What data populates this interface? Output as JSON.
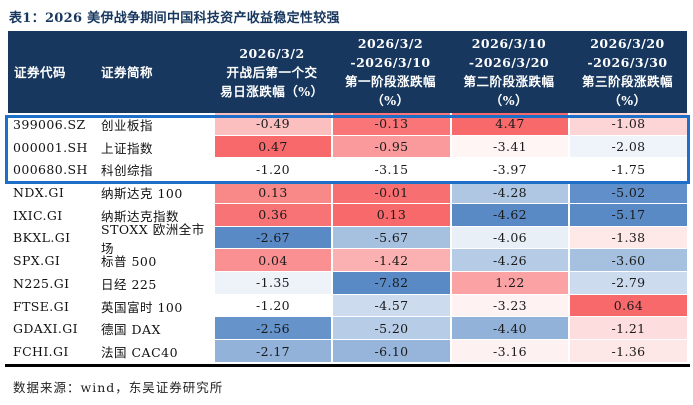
{
  "title": "表1：2026 美伊战争期间中国科技资产收益稳定性较强",
  "source_note": "数据来源：wind，东吴证券研究所",
  "colors": {
    "title_text": "#17375E",
    "header_bg": "#17375E",
    "header_text": "#FFFFFF",
    "highlight_border": "#1E6FC8",
    "heat_max_red": "#F8696B",
    "heat_mid_white": "#FFFFFF",
    "heat_min_blue": "#5A8AC6",
    "bottom_rule": "#000000"
  },
  "table": {
    "header_cells": [
      {
        "lines": [
          "证券代码"
        ]
      },
      {
        "lines": [
          "证券简称"
        ]
      },
      {
        "lines": [
          "2026/3/2",
          "开战后第一个交",
          "易日涨跌幅（%）"
        ]
      },
      {
        "lines": [
          "2026/3/2",
          "-2026/3/10",
          "第一阶段涨跌幅",
          "（%）"
        ]
      },
      {
        "lines": [
          "2026/3/10",
          "-2026/3/20",
          "第二阶段涨跌幅",
          "（%）"
        ]
      },
      {
        "lines": [
          "2026/3/20",
          "-2026/3/30",
          "第三阶段涨跌幅",
          "（%）"
        ]
      }
    ],
    "highlighted_row_indexes": [
      0,
      1,
      2
    ]
  },
  "chart_data": {
    "type": "table",
    "title": "表1：2026 美伊战争期间中国科技资产收益稳定性较强",
    "columns": [
      "证券代码",
      "证券简称",
      "2026/3/2 开战后第一个交易日涨跌幅（%）",
      "2026/3/2-2026/3/10 第一阶段涨跌幅（%）",
      "2026/3/10-2026/3/20 第二阶段涨跌幅（%）",
      "2026/3/20-2026/3/30 第三阶段涨跌幅（%）"
    ],
    "rows": [
      [
        "399006.SZ",
        "创业板指",
        -0.49,
        -0.13,
        4.47,
        -1.08
      ],
      [
        "000001.SH",
        "上证指数",
        0.47,
        -0.95,
        -3.41,
        -2.08
      ],
      [
        "000680.SH",
        "科创综指",
        -1.2,
        -3.15,
        -3.97,
        -1.75
      ],
      [
        "NDX.GI",
        "纳斯达克 100",
        0.13,
        -0.01,
        -4.28,
        -5.02
      ],
      [
        "IXIC.GI",
        "纳斯达克指数",
        0.36,
        0.13,
        -4.62,
        -5.17
      ],
      [
        "BKXL.GI",
        "STOXX 欧洲全市场",
        -2.67,
        -5.67,
        -4.06,
        -1.38
      ],
      [
        "SPX.GI",
        "标普 500",
        0.04,
        -1.42,
        -4.26,
        -3.6
      ],
      [
        "N225.GI",
        "日经 225",
        -1.35,
        -7.82,
        1.22,
        -2.79
      ],
      [
        "FTSE.GI",
        "英国富时 100",
        -1.2,
        -4.57,
        -3.23,
        0.64
      ],
      [
        "GDAXI.GI",
        "德国 DAX",
        -2.56,
        -5.2,
        -4.4,
        -1.21
      ],
      [
        "FCHI.GI",
        "法国 CAC40",
        -2.17,
        -6.1,
        -3.16,
        -1.36
      ]
    ],
    "value_format": "percent, 2 decimals",
    "heatmap": {
      "scope": "per-column conditional formatting on the four value columns",
      "scale": "3-color: column min → #5A8AC6 (blue), column median → #FFFFFF (white), column max → #F8696B (red)"
    }
  }
}
